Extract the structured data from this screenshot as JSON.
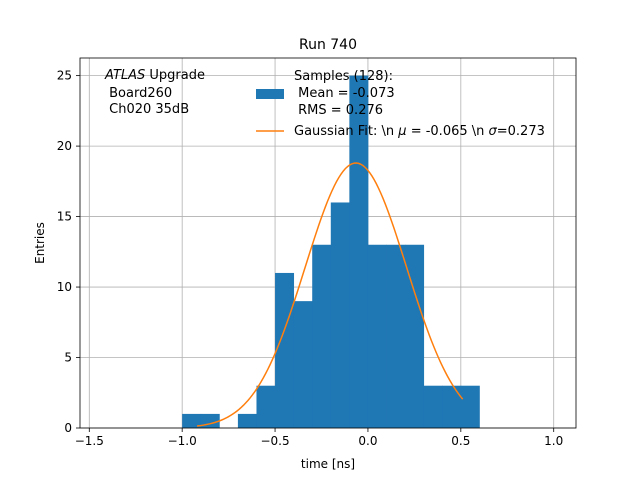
{
  "chart_data": {
    "type": "bar",
    "title": "Run 740",
    "xlabel": "time [ns]",
    "ylabel": "Entries",
    "xlim": [
      -1.55,
      1.12
    ],
    "ylim": [
      0,
      26.25
    ],
    "grid": true,
    "xticks": [
      -1.5,
      -1.0,
      -0.5,
      0.0,
      0.5,
      1.0
    ],
    "xtick_labels": [
      "−1.5",
      "−1.0",
      "−0.5",
      "0.0",
      "0.5",
      "1.0"
    ],
    "yticks": [
      0,
      5,
      10,
      15,
      20,
      25
    ],
    "ytick_labels": [
      "0",
      "5",
      "10",
      "15",
      "20",
      "25"
    ],
    "bar_color": "#1f77b4",
    "fit_color": "#ff7f0e",
    "histogram": {
      "bins": [
        {
          "x0": -1.0,
          "x1": -0.9,
          "count": 1
        },
        {
          "x0": -0.9,
          "x1": -0.8,
          "count": 1
        },
        {
          "x0": -0.7,
          "x1": -0.6,
          "count": 1
        },
        {
          "x0": -0.6,
          "x1": -0.5,
          "count": 3
        },
        {
          "x0": -0.5,
          "x1": -0.4,
          "count": 11
        },
        {
          "x0": -0.4,
          "x1": -0.3,
          "count": 9
        },
        {
          "x0": -0.3,
          "x1": -0.2,
          "count": 13
        },
        {
          "x0": -0.2,
          "x1": -0.1,
          "count": 16
        },
        {
          "x0": -0.1,
          "x1": 0.0,
          "count": 25
        },
        {
          "x0": 0.0,
          "x1": 0.1,
          "count": 13
        },
        {
          "x0": 0.1,
          "x1": 0.2,
          "count": 13
        },
        {
          "x0": 0.2,
          "x1": 0.3,
          "count": 13
        },
        {
          "x0": 0.3,
          "x1": 0.4,
          "count": 3
        },
        {
          "x0": 0.4,
          "x1": 0.5,
          "count": 3
        },
        {
          "x0": 0.5,
          "x1": 0.6,
          "count": 3
        }
      ]
    },
    "gaussian_fit": {
      "amplitude": 18.8,
      "mean": -0.065,
      "sigma": 0.273,
      "x_range": [
        -0.92,
        0.51
      ]
    },
    "annotation": {
      "line1_italic": "ATLAS",
      "line1_rest": " Upgrade",
      "line2": " Board260",
      "line3": " Ch020 35dB"
    },
    "legend": {
      "placement": "top-right",
      "hist_line1": "Samples (128):",
      "hist_line2": " Mean = -0.073",
      "hist_line3": " RMS = 0.276",
      "fit_prefix": "Gaussian Fit: \\n ",
      "fit_mu_symbol": "μ",
      "fit_mu_value": " = -0.065 \\n ",
      "fit_sigma_symbol": "σ",
      "fit_sigma_value": "=0.273"
    }
  }
}
